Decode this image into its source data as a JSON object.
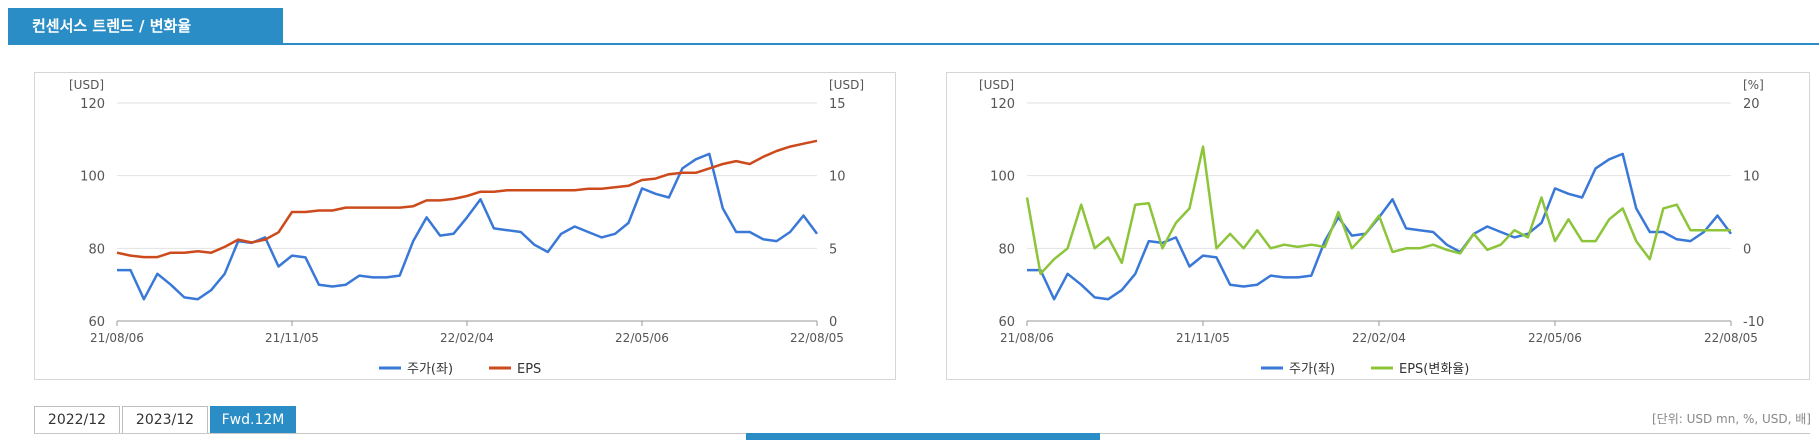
{
  "header": {
    "title": "컨센서스 트렌드 / 변화율"
  },
  "tabs": [
    {
      "label": "2022/12",
      "active": false
    },
    {
      "label": "2023/12",
      "active": false
    },
    {
      "label": "Fwd.12M",
      "active": true
    }
  ],
  "unit_note": "[단위: USD mn, %, USD, 배]",
  "colors": {
    "accent": "#2a8dc5",
    "price": "#3a78d8",
    "eps": "#cc4a1c",
    "eps_change": "#8cc43a"
  },
  "chart_data": [
    {
      "type": "line",
      "x_ticks": [
        "21/08/06",
        "21/11/05",
        "22/02/04",
        "22/05/06",
        "22/08/05"
      ],
      "y_left_unit": "[USD]",
      "y_right_unit": "[USD]",
      "ylim_left": [
        60,
        120
      ],
      "ylim_right": [
        0,
        15
      ],
      "yticks_left": [
        60,
        80,
        100,
        120
      ],
      "yticks_right": [
        0,
        5,
        10,
        15
      ],
      "grid": "horizontal",
      "legend_placement": "bottom-center",
      "series": [
        {
          "name": "주가(좌)",
          "axis": "left",
          "color": "#3a78d8",
          "values": [
            74,
            74,
            66,
            73,
            70,
            66.5,
            66,
            68.5,
            73,
            82,
            81.5,
            83,
            75,
            78,
            77.5,
            70,
            69.5,
            70,
            72.5,
            72,
            72,
            72.5,
            82,
            88.5,
            83.5,
            84,
            88.5,
            93.5,
            85.5,
            85,
            84.5,
            81,
            79,
            84,
            86,
            84.5,
            83,
            84,
            87,
            96.5,
            95,
            94,
            102,
            104.5,
            106,
            91,
            84.5,
            84.5,
            82.5,
            82,
            84.5,
            89,
            84
          ]
        },
        {
          "name": "EPS",
          "axis": "right",
          "color": "#cc4a1c",
          "values": [
            4.7,
            4.5,
            4.4,
            4.4,
            4.7,
            4.7,
            4.8,
            4.7,
            5.1,
            5.6,
            5.4,
            5.6,
            6.1,
            7.5,
            7.5,
            7.6,
            7.6,
            7.8,
            7.8,
            7.8,
            7.8,
            7.8,
            7.9,
            8.3,
            8.3,
            8.4,
            8.6,
            8.9,
            8.9,
            9.0,
            9.0,
            9.0,
            9.0,
            9.0,
            9.0,
            9.1,
            9.1,
            9.2,
            9.3,
            9.7,
            9.8,
            10.1,
            10.2,
            10.2,
            10.5,
            10.8,
            11.0,
            10.8,
            11.3,
            11.7,
            12.0,
            12.2,
            12.4
          ]
        }
      ]
    },
    {
      "type": "line",
      "x_ticks": [
        "21/08/06",
        "21/11/05",
        "22/02/04",
        "22/05/06",
        "22/08/05"
      ],
      "y_left_unit": "[USD]",
      "y_right_unit": "[%]",
      "ylim_left": [
        60,
        120
      ],
      "ylim_right": [
        -10,
        20
      ],
      "yticks_left": [
        60,
        80,
        100,
        120
      ],
      "yticks_right": [
        -10,
        0,
        10,
        20
      ],
      "grid": "horizontal",
      "legend_placement": "bottom-center",
      "series": [
        {
          "name": "주가(좌)",
          "axis": "left",
          "color": "#3a78d8",
          "values": [
            74,
            74,
            66,
            73,
            70,
            66.5,
            66,
            68.5,
            73,
            82,
            81.5,
            83,
            75,
            78,
            77.5,
            70,
            69.5,
            70,
            72.5,
            72,
            72,
            72.5,
            82,
            88.5,
            83.5,
            84,
            88.5,
            93.5,
            85.5,
            85,
            84.5,
            81,
            79,
            84,
            86,
            84.5,
            83,
            84,
            87,
            96.5,
            95,
            94,
            102,
            104.5,
            106,
            91,
            84.5,
            84.5,
            82.5,
            82,
            84.5,
            89,
            84
          ]
        },
        {
          "name": "EPS(변화율)",
          "axis": "right",
          "color": "#8cc43a",
          "values": [
            7,
            -3.5,
            -1.5,
            0,
            6,
            0,
            1.5,
            -2,
            6,
            6.2,
            0,
            3.5,
            5.5,
            14,
            0,
            2,
            0,
            2.5,
            0,
            0.5,
            0.2,
            0.5,
            0.2,
            5,
            0,
            2,
            4.5,
            -0.5,
            0,
            0,
            0.5,
            -0.2,
            -0.7,
            2,
            -0.2,
            0.5,
            2.5,
            1.5,
            7,
            1,
            4,
            1,
            1,
            4,
            5.5,
            1,
            -1.5,
            5.5,
            6,
            2.5,
            2.5,
            2.5,
            2.5
          ]
        }
      ]
    }
  ]
}
